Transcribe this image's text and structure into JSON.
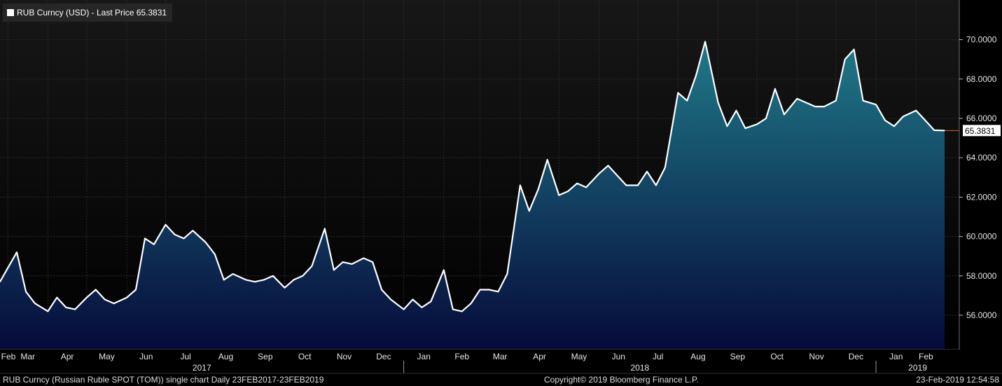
{
  "legend": {
    "label": "RUB Curncy (USD) - Last Price 65.3831",
    "swatch_color": "#ffffff"
  },
  "footer": {
    "left": "RUB Curncy (Russian Ruble SPOT (TOM)) single chart  Daily 23FEB2017-23FEB2019",
    "center": "Copyright© 2019 Bloomberg Finance L.P.",
    "right": "23-Feb-2019 12:54:58"
  },
  "colors": {
    "background": "#000000",
    "plot_bg_top": "#171717",
    "line": "#ffffff",
    "fill_top": "#1f7a88",
    "fill_bottom": "#060a3a",
    "last_marker": "#d2691e"
  },
  "chart_data": {
    "type": "area",
    "ylim": [
      54,
      72
    ],
    "yticks": [
      56,
      58,
      60,
      62,
      64,
      66,
      68,
      70
    ],
    "ytick_labels": [
      "56.0000",
      "58.0000",
      "60.0000",
      "62.0000",
      "64.0000",
      "66.0000",
      "68.0000",
      "70.0000"
    ],
    "last_value_label": "65.3831",
    "grid": true,
    "legend_position": "top-left",
    "month_labels": [
      "Feb",
      "Mar",
      "Apr",
      "May",
      "Jun",
      "Jul",
      "Aug",
      "Sep",
      "Oct",
      "Nov",
      "Dec",
      "Jan",
      "Feb",
      "Mar",
      "Apr",
      "May",
      "Jun",
      "Jul",
      "Aug",
      "Sep",
      "Oct",
      "Nov",
      "Dec",
      "Jan",
      "Feb"
    ],
    "year_labels": [
      "2017",
      "2018",
      "2019"
    ],
    "x": [
      "2017-02-23",
      "2017-03-01",
      "2017-03-08",
      "2017-03-15",
      "2017-03-22",
      "2017-04-01",
      "2017-04-08",
      "2017-04-15",
      "2017-04-22",
      "2017-05-01",
      "2017-05-08",
      "2017-05-15",
      "2017-05-22",
      "2017-06-01",
      "2017-06-08",
      "2017-06-15",
      "2017-06-22",
      "2017-07-01",
      "2017-07-08",
      "2017-07-15",
      "2017-07-22",
      "2017-08-01",
      "2017-08-08",
      "2017-08-15",
      "2017-08-22",
      "2017-09-01",
      "2017-09-08",
      "2017-09-15",
      "2017-09-22",
      "2017-10-01",
      "2017-10-08",
      "2017-10-15",
      "2017-10-22",
      "2017-11-01",
      "2017-11-08",
      "2017-11-15",
      "2017-11-22",
      "2017-12-01",
      "2017-12-08",
      "2017-12-15",
      "2017-12-22",
      "2018-01-01",
      "2018-01-08",
      "2018-01-15",
      "2018-01-22",
      "2018-02-01",
      "2018-02-08",
      "2018-02-15",
      "2018-02-22",
      "2018-03-01",
      "2018-03-08",
      "2018-03-15",
      "2018-03-22",
      "2018-04-01",
      "2018-04-08",
      "2018-04-15",
      "2018-04-22",
      "2018-05-01",
      "2018-05-08",
      "2018-05-15",
      "2018-05-22",
      "2018-06-01",
      "2018-06-08",
      "2018-06-15",
      "2018-06-22",
      "2018-07-01",
      "2018-07-08",
      "2018-07-15",
      "2018-07-22",
      "2018-08-01",
      "2018-08-08",
      "2018-08-15",
      "2018-08-22",
      "2018-09-01",
      "2018-09-08",
      "2018-09-15",
      "2018-09-22",
      "2018-10-01",
      "2018-10-08",
      "2018-10-15",
      "2018-10-22",
      "2018-11-01",
      "2018-11-08",
      "2018-11-15",
      "2018-11-22",
      "2018-12-01",
      "2018-12-08",
      "2018-12-15",
      "2018-12-22",
      "2019-01-01",
      "2019-01-08",
      "2019-01-15",
      "2019-01-22",
      "2019-02-01",
      "2019-02-08",
      "2019-02-15",
      "2019-02-23"
    ],
    "series": [
      {
        "values": [
          57.7,
          58.4,
          59.2,
          57.2,
          56.6,
          56.2,
          56.9,
          56.4,
          56.3,
          56.9,
          57.3,
          56.8,
          56.6,
          56.9,
          57.3,
          59.9,
          59.6,
          60.6,
          60.1,
          59.9,
          60.3,
          59.7,
          59.1,
          57.8,
          58.1,
          57.8,
          57.7,
          57.8,
          58.0,
          57.4,
          57.8,
          58.0,
          58.5,
          60.4,
          58.3,
          58.7,
          58.6,
          58.9,
          58.7,
          57.3,
          56.8,
          56.3,
          56.8,
          56.4,
          56.7,
          58.3,
          56.3,
          56.2,
          56.6,
          57.3,
          57.3,
          57.2,
          58.1,
          62.6,
          61.3,
          62.4,
          63.9,
          62.1,
          62.3,
          62.7,
          62.5,
          63.2,
          63.6,
          63.1,
          62.6,
          62.6,
          63.3,
          62.6,
          63.5,
          67.3,
          66.9,
          68.2,
          69.9,
          66.8,
          65.6,
          66.4,
          65.5,
          65.7,
          66.0,
          67.5,
          66.2,
          67.0,
          66.8,
          66.6,
          66.6,
          66.9,
          69.0,
          69.5,
          66.9,
          66.7,
          65.9,
          65.6,
          66.1,
          66.4,
          65.9,
          65.4,
          65.3831
        ]
      }
    ]
  }
}
